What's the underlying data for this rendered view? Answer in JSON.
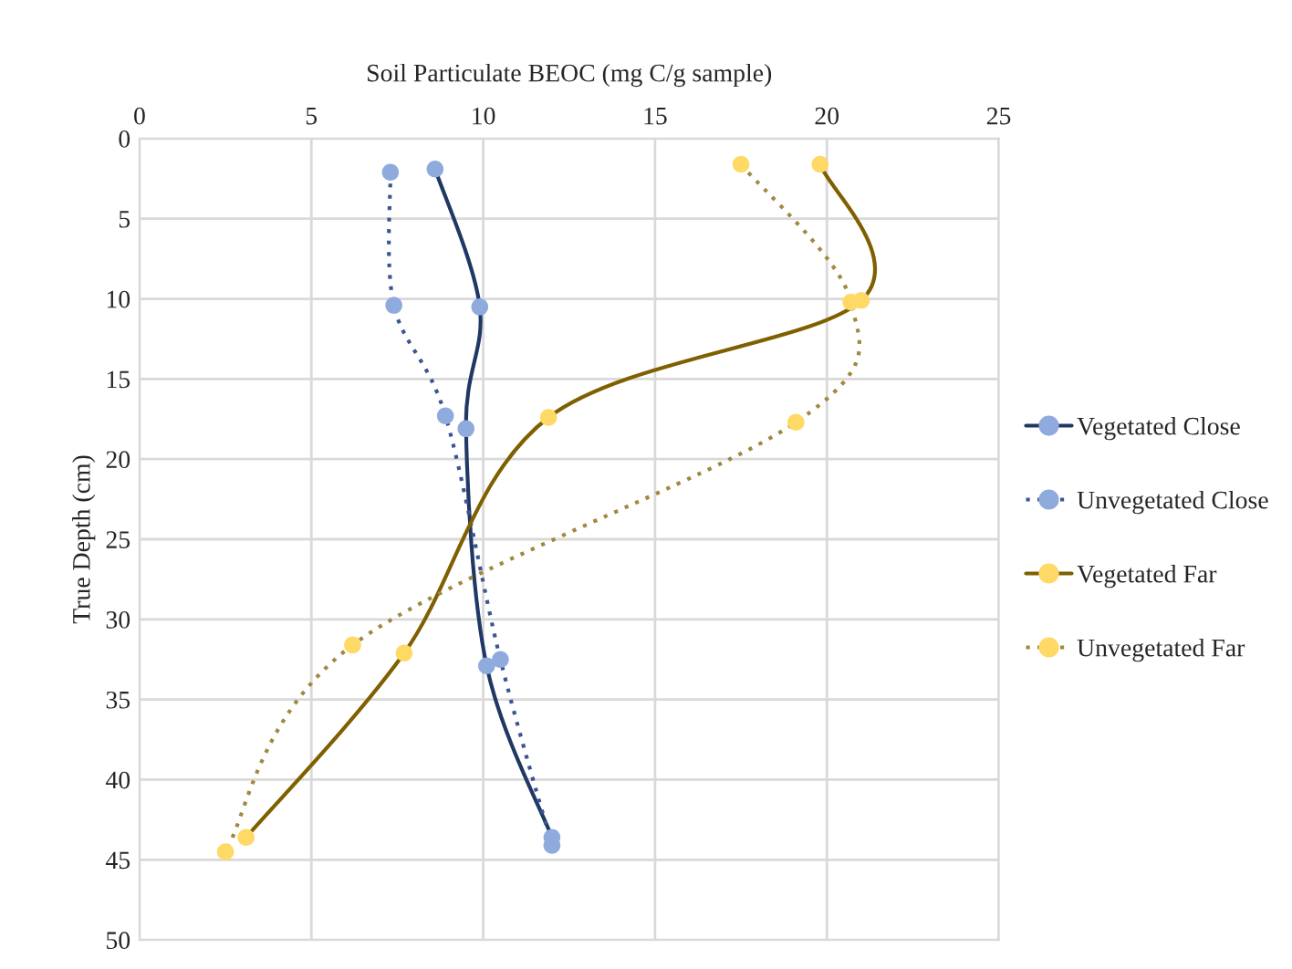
{
  "chart_data": {
    "type": "line",
    "xlabel": "Soil Particulate BEOC (mg C/g sample)",
    "ylabel": "True Depth (cm)",
    "xlim": [
      0,
      25
    ],
    "xticks": [
      0,
      5,
      10,
      15,
      20,
      25
    ],
    "ylim": [
      50,
      0
    ],
    "yticks": [
      0,
      5,
      10,
      15,
      20,
      25,
      30,
      35,
      40,
      45,
      50
    ],
    "grid": true,
    "legend": "right",
    "marker": "circle",
    "series": [
      {
        "name": "Vegetated Close",
        "color": "#203864",
        "line_style": "solid",
        "colors": [
          "#8faadc",
          "#8faadc",
          "#8faadc",
          "#8faadc",
          "#8faadc"
        ],
        "x": [
          8.6,
          9.9,
          9.5,
          10.1,
          12.0
        ],
        "values": [
          1.9,
          10.5,
          18.1,
          32.9,
          43.6
        ]
      },
      {
        "name": "Unvegetated Close",
        "color": "#3a5590",
        "line_style": "dotted",
        "colors": [
          "#8faadc",
          "#8faadc",
          "#8faadc",
          "#8faadc",
          "#8faadc"
        ],
        "x": [
          7.3,
          7.4,
          8.9,
          10.5,
          12.0
        ],
        "values": [
          2.1,
          10.4,
          17.3,
          32.5,
          44.1
        ]
      },
      {
        "name": "Vegetated Far",
        "color": "#7f6000",
        "line_style": "solid",
        "colors": [
          "#ffd966",
          "#ffd966",
          "#ffd966",
          "#ffd966",
          "#ffd966"
        ],
        "x": [
          19.8,
          21.0,
          11.9,
          7.7,
          3.1
        ],
        "values": [
          1.6,
          10.1,
          17.4,
          32.1,
          43.6
        ]
      },
      {
        "name": "Unvegetated Far",
        "color": "#a08840",
        "line_style": "dotted",
        "colors": [
          "#ffd966",
          "#ffd966",
          "#ffd966",
          "#ffd966",
          "#ffd966"
        ],
        "x": [
          17.5,
          20.7,
          19.1,
          6.2,
          2.5
        ],
        "values": [
          1.6,
          10.2,
          17.7,
          31.6,
          44.5
        ]
      }
    ]
  }
}
